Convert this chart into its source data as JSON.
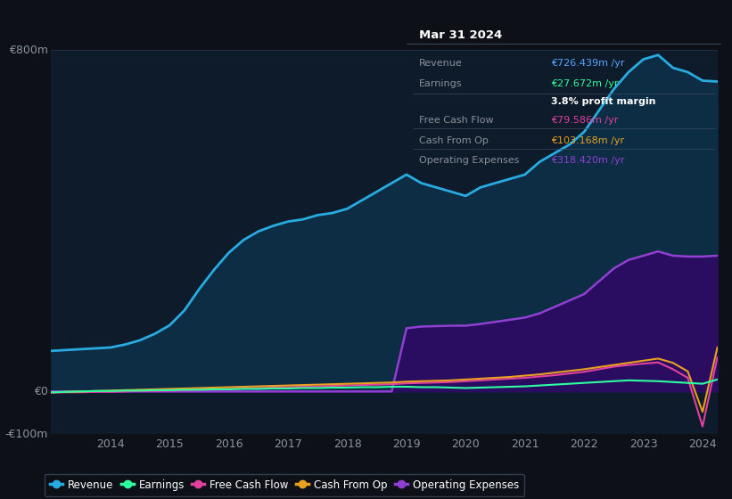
{
  "bg_color": "#0d1117",
  "plot_bg_color": "#0d1b2a",
  "years": [
    2013.0,
    2013.25,
    2013.5,
    2013.75,
    2014.0,
    2014.25,
    2014.5,
    2014.75,
    2015.0,
    2015.25,
    2015.5,
    2015.75,
    2016.0,
    2016.25,
    2016.5,
    2016.75,
    2017.0,
    2017.25,
    2017.5,
    2017.75,
    2018.0,
    2018.25,
    2018.5,
    2018.75,
    2019.0,
    2019.25,
    2019.5,
    2019.75,
    2020.0,
    2020.25,
    2020.5,
    2020.75,
    2021.0,
    2021.25,
    2021.5,
    2021.75,
    2022.0,
    2022.25,
    2022.5,
    2022.75,
    2023.0,
    2023.25,
    2023.5,
    2023.75,
    2024.0,
    2024.25
  ],
  "revenue": [
    95,
    97,
    99,
    101,
    103,
    110,
    120,
    135,
    155,
    190,
    240,
    285,
    325,
    355,
    375,
    388,
    398,
    403,
    413,
    418,
    428,
    448,
    468,
    488,
    508,
    488,
    478,
    468,
    458,
    478,
    488,
    498,
    508,
    538,
    558,
    578,
    608,
    658,
    708,
    748,
    778,
    788,
    758,
    748,
    728,
    726
  ],
  "earnings": [
    -2,
    -1,
    0,
    1,
    1,
    2,
    2,
    3,
    3,
    4,
    4,
    5,
    5,
    6,
    6,
    7,
    7,
    8,
    8,
    9,
    9,
    10,
    10,
    11,
    11,
    10,
    10,
    9,
    8,
    9,
    10,
    11,
    12,
    14,
    16,
    18,
    20,
    22,
    24,
    26,
    25,
    24,
    22,
    20,
    18,
    28
  ],
  "free_cash_flow": [
    -3,
    -2,
    -2,
    -1,
    -1,
    0,
    1,
    1,
    2,
    3,
    4,
    5,
    6,
    7,
    8,
    9,
    10,
    11,
    12,
    13,
    14,
    15,
    16,
    17,
    19,
    20,
    21,
    22,
    24,
    26,
    28,
    30,
    32,
    35,
    38,
    42,
    46,
    52,
    58,
    62,
    65,
    68,
    52,
    32,
    -82,
    80
  ],
  "cash_from_op": [
    -2,
    -1,
    0,
    1,
    2,
    3,
    4,
    5,
    6,
    7,
    8,
    9,
    10,
    11,
    12,
    13,
    14,
    15,
    16,
    17,
    18,
    19,
    20,
    21,
    23,
    24,
    25,
    26,
    28,
    30,
    32,
    34,
    37,
    40,
    44,
    48,
    52,
    57,
    62,
    67,
    72,
    77,
    67,
    47,
    -48,
    103
  ],
  "operating_expenses": [
    0,
    0,
    0,
    0,
    0,
    0,
    0,
    0,
    0,
    0,
    0,
    0,
    0,
    0,
    0,
    0,
    0,
    0,
    0,
    0,
    0,
    0,
    0,
    0,
    148,
    152,
    153,
    154,
    154,
    158,
    163,
    168,
    173,
    183,
    198,
    213,
    228,
    258,
    288,
    308,
    318,
    328,
    318,
    316,
    316,
    318
  ],
  "ylim": [
    -100,
    800
  ],
  "xlim": [
    2013.0,
    2024.25
  ],
  "xticks": [
    2014,
    2015,
    2016,
    2017,
    2018,
    2019,
    2020,
    2021,
    2022,
    2023,
    2024
  ],
  "revenue_color": "#29abe2",
  "revenue_fill": "#0d2d45",
  "earnings_color": "#2dffa0",
  "free_cash_flow_color": "#e040a0",
  "cash_from_op_color": "#e8a020",
  "op_expenses_color": "#9040d0",
  "op_expenses_fill": "#2a0d60",
  "legend_labels": [
    "Revenue",
    "Earnings",
    "Free Cash Flow",
    "Cash From Op",
    "Operating Expenses"
  ],
  "legend_colors": [
    "#29abe2",
    "#2dffa0",
    "#e040a0",
    "#e8a020",
    "#9040d0"
  ],
  "infobox_bg": "#0a0f16",
  "infobox_border": "#3a4a5a",
  "infobox_title": "Mar 31 2024",
  "infobox_rows": [
    {
      "label": "Revenue",
      "value": "€726.439m /yr",
      "vcolor": "#58a6ff"
    },
    {
      "label": "Earnings",
      "value": "€27.672m /yr",
      "vcolor": "#2dffa0"
    },
    {
      "label": "",
      "value": "3.8% profit margin",
      "vcolor": "#ffffff"
    },
    {
      "label": "Free Cash Flow",
      "value": "€79.586m /yr",
      "vcolor": "#e040a0"
    },
    {
      "label": "Cash From Op",
      "value": "€103.168m /yr",
      "vcolor": "#e8a020"
    },
    {
      "label": "Operating Expenses",
      "value": "€318.420m /yr",
      "vcolor": "#9040d0"
    }
  ]
}
